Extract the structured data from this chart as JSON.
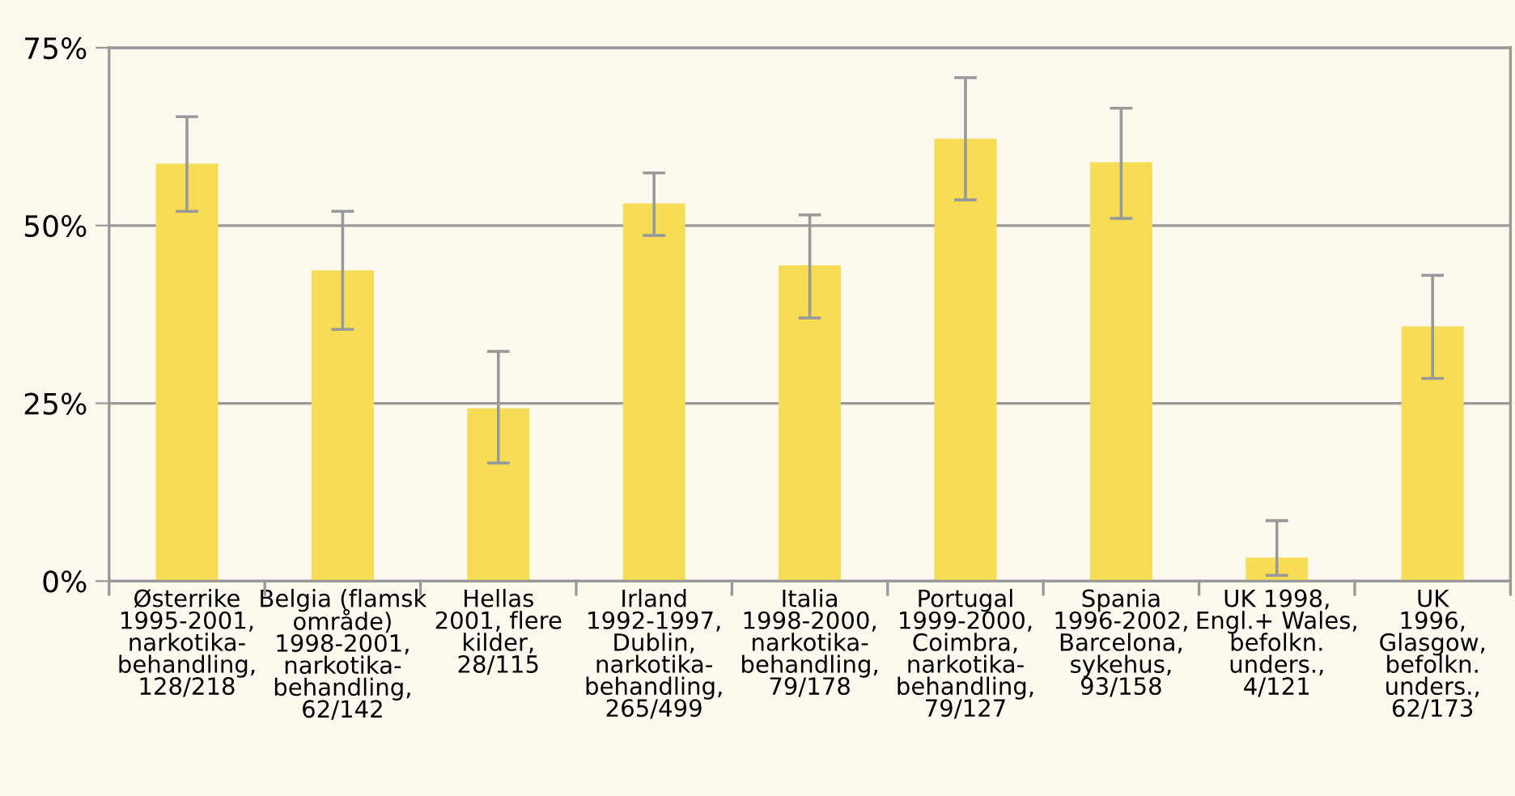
{
  "chart_data": {
    "type": "bar",
    "categories": [
      "Østerrike\n1995-2001,\nnarkotika-\nbehandling,\n128/218",
      "Belgia (flamsk\nområde)\n1998-2001,\nnarkotika-\nbehandling,\n62/142",
      "Hellas\n2001, flere\nkilder,\n28/115",
      "Irland\n1992-1997,\nDublin,\nnarkotika-\nbehandling,\n265/499",
      "Italia\n1998-2000,\nnarkotika-\nbehandling,\n79/178",
      "Portugal\n1999-2000,\nCoimbra,\nnarkotika-\nbehandling,\n79/127",
      "Spania\n1996-2002,\nBarcelona,\nsykehus,\n93/158",
      "UK 1998,\nEngl.+ Wales,\nbefolkn.\nunders.,\n4/121",
      "UK\n1996,\nGlasgow,\nbefolkn.\nunders.,\n62/173"
    ],
    "values": [
      58.7,
      43.7,
      24.3,
      53.1,
      44.4,
      62.2,
      58.9,
      3.3,
      35.8
    ],
    "errors": [
      [
        52.0,
        65.3
      ],
      [
        35.4,
        52.0
      ],
      [
        16.6,
        32.3
      ],
      [
        48.6,
        57.4
      ],
      [
        37.0,
        51.5
      ],
      [
        53.6,
        70.8
      ],
      [
        51.0,
        66.5
      ],
      [
        0.8,
        8.5
      ],
      [
        28.5,
        43.0
      ]
    ],
    "color": "#f7dc56",
    "ylim": [
      0,
      75
    ],
    "yticks": [
      {
        "value": 0,
        "label": "0%"
      },
      {
        "value": 25,
        "label": "25%"
      },
      {
        "value": 50,
        "label": "50%"
      },
      {
        "value": 75,
        "label": "75%"
      }
    ],
    "grid": "y",
    "legend": false
  }
}
